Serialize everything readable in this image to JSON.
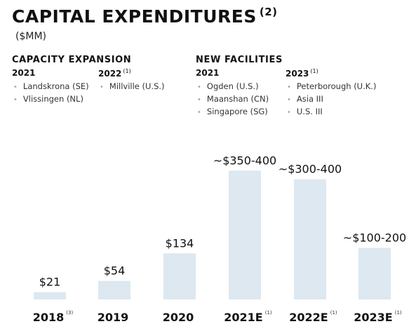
{
  "header": {
    "title": "CAPITAL EXPENDITURES",
    "title_note": "(2)",
    "units": "($MM)"
  },
  "capacity_expansion": {
    "title": "CAPACITY EXPANSION",
    "groups": [
      {
        "year": "2021",
        "note": "",
        "items": [
          "Landskrona (SE)",
          "Vlissingen (NL)"
        ]
      },
      {
        "year": "2022",
        "note": "(1)",
        "items": [
          "Millville (U.S.)"
        ]
      }
    ]
  },
  "new_facilities": {
    "title": "NEW FACILITIES",
    "groups": [
      {
        "year": "2021",
        "note": "",
        "items": [
          "Ogden (U.S.)",
          "Maanshan (CN)",
          "Singapore (SG)"
        ]
      },
      {
        "year": "2023",
        "note": "(1)",
        "items": [
          "Peterborough (U.K.)",
          "Asia III",
          "U.S. III"
        ]
      }
    ]
  },
  "colors": {
    "bar": "#dde8f0",
    "text": "#111111"
  },
  "chart_data": {
    "type": "bar",
    "categories": [
      "2018",
      "2019",
      "2020",
      "2021E",
      "2022E",
      "2023E"
    ],
    "category_notes": [
      "(3)",
      "",
      "",
      "(1)",
      "(1)",
      "(1)"
    ],
    "values": [
      21,
      54,
      134,
      375,
      350,
      150
    ],
    "ranges": [
      null,
      null,
      null,
      [
        350,
        400
      ],
      [
        300,
        400
      ],
      [
        100,
        200
      ]
    ],
    "labels": [
      "$21",
      "$54",
      "$134",
      "~$350-400",
      "~$300-400",
      "~$100-200"
    ],
    "ylabel": "$MM",
    "ylim": [
      0,
      400
    ],
    "grid": false,
    "legend": "none"
  }
}
